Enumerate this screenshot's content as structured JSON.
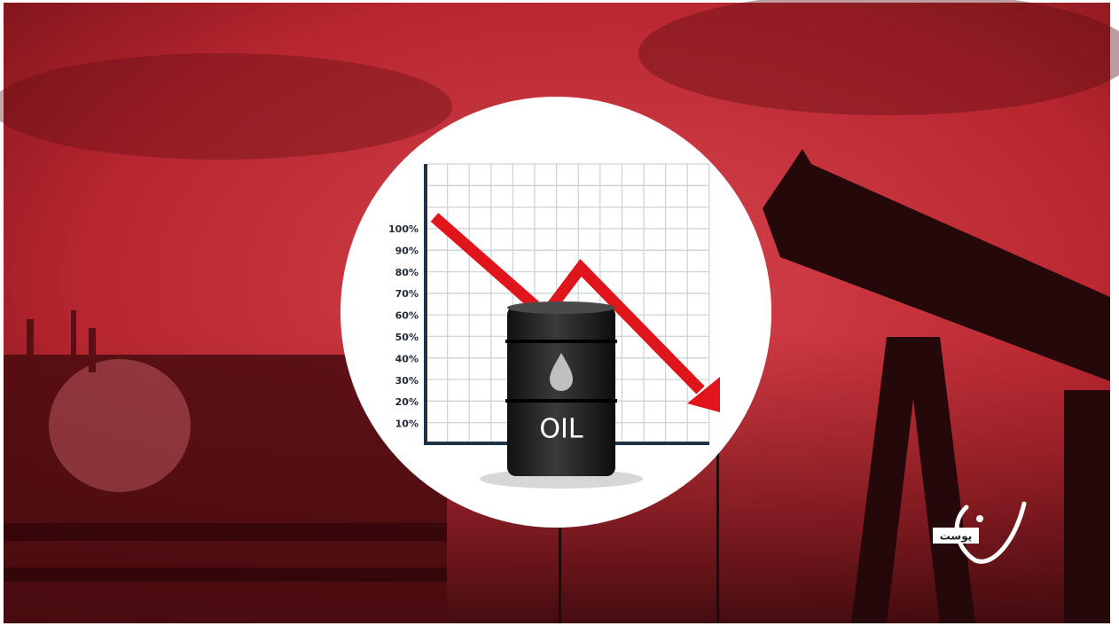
{
  "illustration": {
    "axis_labels": [
      "100%",
      "90%",
      "80%",
      "70%",
      "60%",
      "50%",
      "40%",
      "30%",
      "20%",
      "10%"
    ],
    "barrel_label": "OIL"
  },
  "logo": {
    "text": "پوست"
  }
}
